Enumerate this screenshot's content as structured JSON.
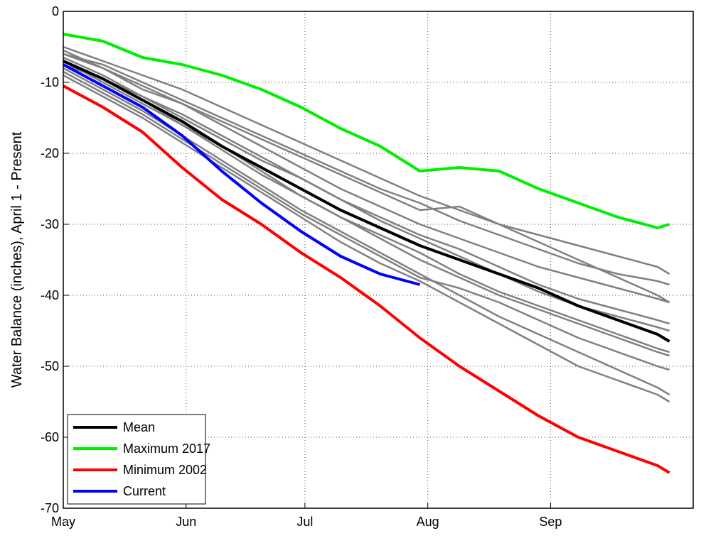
{
  "chart_data": {
    "type": "line",
    "ylabel": "Water Balance (inches), April 1 - Present",
    "x": [
      0,
      10,
      20,
      30,
      40,
      50,
      60,
      70,
      80,
      90,
      100,
      110,
      120,
      130,
      140,
      150,
      153
    ],
    "xlim": [
      0,
      159
    ],
    "xticks": [
      {
        "value": 0,
        "label": "May"
      },
      {
        "value": 31,
        "label": "Jun"
      },
      {
        "value": 61,
        "label": "Jul"
      },
      {
        "value": 92,
        "label": "Aug"
      },
      {
        "value": 123,
        "label": "Sep"
      }
    ],
    "ylim": [
      -70,
      0
    ],
    "yticks": [
      0,
      -10,
      -20,
      -30,
      -40,
      -50,
      -60,
      -70
    ],
    "grid": true,
    "legend": "lower left",
    "series": [
      {
        "color": "#808080",
        "values": [
          -5,
          -7,
          -9,
          -11,
          -13.5,
          -16,
          -18.5,
          -21,
          -23.5,
          -26,
          -28,
          -30,
          -31.5,
          -33,
          -34.5,
          -36,
          -37
        ]
      },
      {
        "color": "#808080",
        "values": [
          -6,
          -8,
          -10.5,
          -13,
          -16,
          -19,
          -22,
          -25,
          -27.5,
          -30,
          -32,
          -34,
          -36,
          -37.5,
          -39,
          -40.5,
          -41
        ]
      },
      {
        "color": "#808080",
        "values": [
          -7,
          -10,
          -13,
          -16,
          -19,
          -22.5,
          -26,
          -29,
          -32,
          -35,
          -37.5,
          -40,
          -42,
          -44,
          -46,
          -48,
          -48.5
        ]
      },
      {
        "color": "#808080",
        "values": [
          -8,
          -11,
          -14,
          -17.5,
          -21,
          -24.5,
          -28,
          -31,
          -34,
          -37,
          -40,
          -43,
          -45.5,
          -48,
          -50.5,
          -53,
          -54
        ]
      },
      {
        "color": "#808080",
        "values": [
          -9,
          -12,
          -15,
          -18.5,
          -22,
          -25.5,
          -29,
          -32.5,
          -35.5,
          -38,
          -41,
          -44,
          -47,
          -50,
          -52,
          -54,
          -55
        ]
      },
      {
        "color": "#808080",
        "values": [
          -5.5,
          -8,
          -11,
          -13,
          -15.5,
          -18,
          -20.5,
          -23,
          -25.5,
          -28,
          -27.5,
          -30,
          -32.5,
          -35,
          -37.5,
          -40,
          -41
        ]
      },
      {
        "color": "#808080",
        "values": [
          -6.5,
          -9,
          -12,
          -14.5,
          -17.5,
          -20.5,
          -23.5,
          -26.5,
          -29.5,
          -32,
          -34.5,
          -37,
          -39.5,
          -41.5,
          -43,
          -44.5,
          -45
        ]
      },
      {
        "color": "#808080",
        "values": [
          -7.5,
          -9.5,
          -12.5,
          -16,
          -19.5,
          -23,
          -26,
          -29,
          -31.5,
          -34,
          -37,
          -39.5,
          -41.5,
          -43.5,
          -45.5,
          -47.5,
          -48
        ]
      },
      {
        "color": "#808080",
        "values": [
          -8.5,
          -11.5,
          -14.5,
          -18,
          -21.5,
          -25,
          -28.5,
          -31.5,
          -34.5,
          -37.5,
          -39,
          -41,
          -43.5,
          -46,
          -48,
          -50,
          -50.5
        ]
      },
      {
        "color": "#808080",
        "values": [
          -6,
          -7.5,
          -10,
          -12.5,
          -15,
          -17.5,
          -20,
          -22.5,
          -25,
          -27,
          -29.5,
          -31.5,
          -33.5,
          -35.5,
          -37,
          -38,
          -38.5
        ]
      },
      {
        "color": "#808080",
        "values": [
          -7,
          -9.5,
          -12,
          -15,
          -18,
          -21,
          -23.5,
          -26.5,
          -29,
          -31.5,
          -33.5,
          -36,
          -38.5,
          -40.5,
          -42,
          -43.5,
          -44
        ]
      },
      {
        "name": "Mean",
        "color": "#000000",
        "values": [
          -7,
          -9.5,
          -12.5,
          -15.5,
          -19,
          -22,
          -25,
          -28,
          -30.5,
          -33,
          -35,
          -37,
          -39,
          -41.5,
          -43.5,
          -45.5,
          -46.5
        ]
      },
      {
        "name": "Maximum 2017",
        "color": "#00ee00",
        "values": [
          -3.2,
          -4.2,
          -6.5,
          -7.5,
          -9,
          -11,
          -13.5,
          -16.5,
          -19,
          -22.5,
          -22,
          -22.5,
          -25,
          -27,
          -29,
          -30.5,
          -30
        ]
      },
      {
        "name": "Minimum 2002",
        "color": "#ff0000",
        "values": [
          -10.5,
          -13.5,
          -17,
          -22,
          -26.5,
          -30,
          -34,
          -37.5,
          -41.5,
          -46,
          -50,
          -53.5,
          -57,
          -60,
          -62,
          -64,
          -65
        ]
      },
      {
        "name": "Current",
        "color": "#0000ff",
        "values": [
          -7.5,
          -10.5,
          -13.5,
          -17.5,
          -22.5,
          -27,
          -31,
          -34.5,
          -37,
          -38.5,
          null,
          null,
          null,
          null,
          null,
          null,
          null
        ]
      }
    ]
  }
}
